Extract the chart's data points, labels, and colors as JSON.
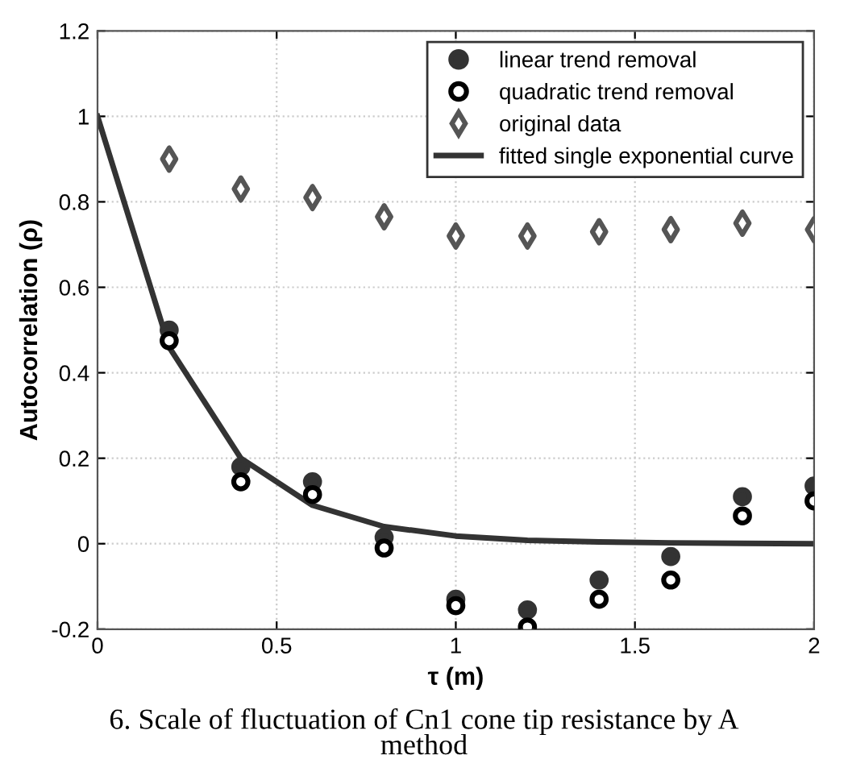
{
  "chart_data": {
    "type": "scatter",
    "xlabel": "τ (m)",
    "ylabel": "Autocorrelation (ρ)",
    "x": [
      0.2,
      0.4,
      0.6,
      0.8,
      1.0,
      1.2,
      1.4,
      1.6,
      1.8,
      2.0
    ],
    "series": [
      {
        "name": "linear trend removal",
        "color": "#333333",
        "marker": "circle",
        "values": [
          0.5,
          0.18,
          0.145,
          0.015,
          -0.13,
          -0.155,
          -0.085,
          -0.03,
          0.11,
          0.135
        ]
      },
      {
        "name": "quadratic trend removal",
        "color": "#000000",
        "marker": "circle",
        "values": [
          0.475,
          0.145,
          0.115,
          -0.01,
          -0.145,
          -0.195,
          -0.13,
          -0.085,
          0.065,
          0.1
        ]
      },
      {
        "name": "original data",
        "color": "#555555",
        "marker": "diamond",
        "values": [
          0.9,
          0.83,
          0.81,
          0.765,
          0.72,
          0.72,
          0.73,
          0.735,
          0.75,
          0.735
        ]
      },
      {
        "name": "fitted single exponential curve",
        "type": "line",
        "color": "#333333",
        "x": [
          0,
          0.2,
          0.4,
          0.6,
          0.8,
          1.0,
          1.2,
          1.4,
          1.6,
          1.8,
          2.0
        ],
        "values": [
          1.0,
          0.46,
          0.2,
          0.09,
          0.04,
          0.018,
          0.008,
          0.004,
          0.002,
          0.001,
          0.0
        ]
      }
    ],
    "xlim": [
      0,
      2
    ],
    "ylim": [
      -0.2,
      1.2
    ],
    "xticks": [
      0,
      0.5,
      1,
      1.5,
      2
    ],
    "yticks": [
      -0.2,
      0,
      0.2,
      0.4,
      0.6,
      0.8,
      1,
      1.2
    ],
    "grid": true,
    "legend": "top right",
    "annotations": [
      "6. Scale of fluctuation of Cn1 cone tip resistance by A\nmethod"
    ]
  }
}
